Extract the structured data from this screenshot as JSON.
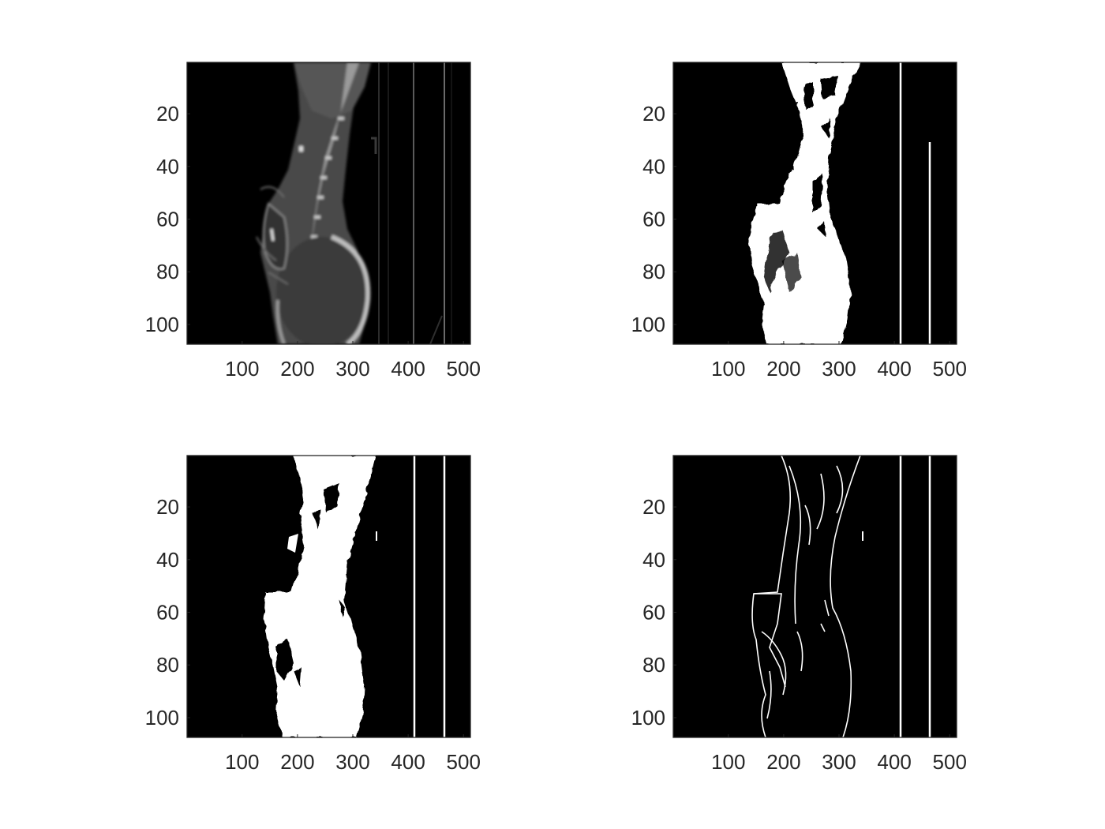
{
  "figure": {
    "background": "#ffffff",
    "image_background": "#000000",
    "foreground": "#ffffff",
    "tick_color": "#262626"
  },
  "chart_data": [
    {
      "type": "image",
      "panel": "top-left",
      "rendering": "grayscale CT sagittal slice",
      "xlim": [
        0.5,
        512.5
      ],
      "ylim": [
        0.5,
        107.5
      ],
      "y_reversed": true,
      "xticks": [
        100,
        200,
        300,
        400,
        500
      ],
      "yticks": [
        20,
        40,
        60,
        80,
        100
      ],
      "xtick_labels": [
        "100",
        "200",
        "300",
        "400",
        "500"
      ],
      "ytick_labels": [
        "20",
        "40",
        "60",
        "80",
        "100"
      ],
      "grid": false
    },
    {
      "type": "image",
      "panel": "top-right",
      "rendering": "binary mask",
      "xlim": [
        0.5,
        512.5
      ],
      "ylim": [
        0.5,
        107.5
      ],
      "y_reversed": true,
      "xticks": [
        100,
        200,
        300,
        400,
        500
      ],
      "yticks": [
        20,
        40,
        60,
        80,
        100
      ],
      "xtick_labels": [
        "100",
        "200",
        "300",
        "400",
        "500"
      ],
      "ytick_labels": [
        "20",
        "40",
        "60",
        "80",
        "100"
      ],
      "grid": false
    },
    {
      "type": "image",
      "panel": "bottom-left",
      "rendering": "binary mask (filled)",
      "xlim": [
        0.5,
        512.5
      ],
      "ylim": [
        0.5,
        107.5
      ],
      "y_reversed": true,
      "xticks": [
        100,
        200,
        300,
        400,
        500
      ],
      "yticks": [
        20,
        40,
        60,
        80,
        100
      ],
      "xtick_labels": [
        "100",
        "200",
        "300",
        "400",
        "500"
      ],
      "ytick_labels": [
        "20",
        "40",
        "60",
        "80",
        "100"
      ],
      "grid": false
    },
    {
      "type": "image",
      "panel": "bottom-right",
      "rendering": "binary edge map",
      "xlim": [
        0.5,
        512.5
      ],
      "ylim": [
        0.5,
        107.5
      ],
      "y_reversed": true,
      "xticks": [
        100,
        200,
        300,
        400,
        500
      ],
      "yticks": [
        20,
        40,
        60,
        80,
        100
      ],
      "xtick_labels": [
        "100",
        "200",
        "300",
        "400",
        "500"
      ],
      "ytick_labels": [
        "20",
        "40",
        "60",
        "80",
        "100"
      ],
      "grid": false
    }
  ]
}
